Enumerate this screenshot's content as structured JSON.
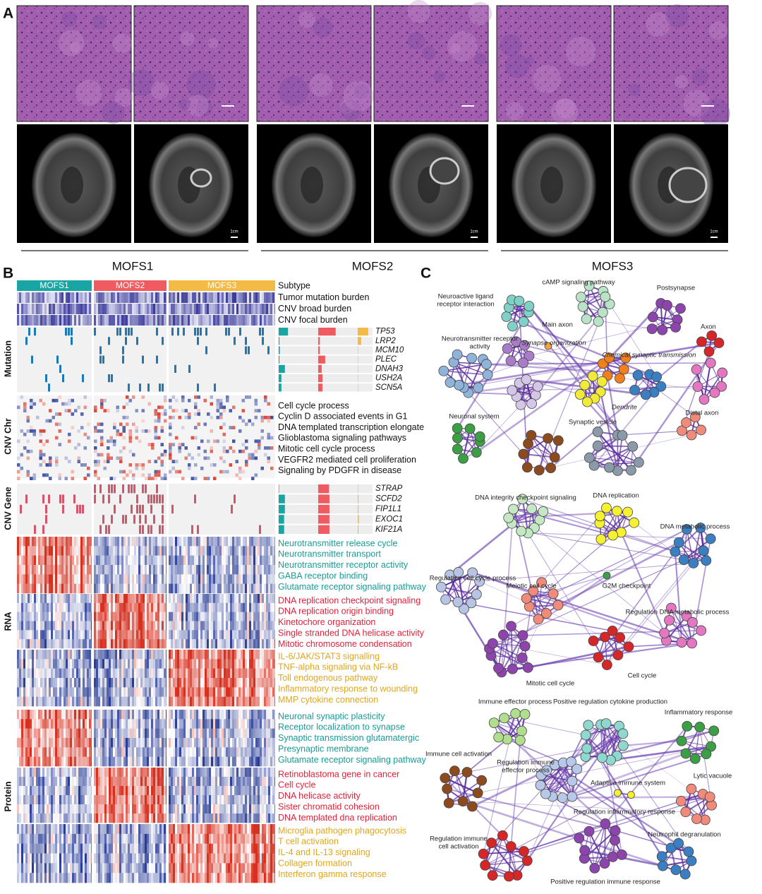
{
  "panels": {
    "a": "A",
    "b": "B",
    "c": "C"
  },
  "panel_a": {
    "groups": [
      "MOFS1",
      "MOFS2",
      "MOFS3"
    ],
    "scale_label": "1cm"
  },
  "panel_b": {
    "subtypes": [
      {
        "name": "MOFS1",
        "color": "#1aa5a5"
      },
      {
        "name": "MOFS2",
        "color": "#ef5b61"
      },
      {
        "name": "MOFS3",
        "color": "#f3bb45"
      }
    ],
    "subtype_label": "Subtype",
    "tracks": [
      "Tumor mutation burden",
      "CNV broad burden",
      "CNV focal burden"
    ],
    "sections": [
      "Mutation",
      "CNV Chr",
      "CNV Gene",
      "RNA",
      "Protein"
    ],
    "mutation": {
      "genes": [
        "TP53",
        "LRP2",
        "MCM10",
        "PLEC",
        "DNAH3",
        "USH2A",
        "SCN5A"
      ],
      "bars": [
        [
          24,
          45,
          27
        ],
        [
          2,
          4,
          9
        ],
        [
          3,
          4,
          1
        ],
        [
          2,
          18,
          1
        ],
        [
          16,
          9,
          1
        ],
        [
          7,
          11,
          1
        ],
        [
          7,
          11,
          1
        ]
      ]
    },
    "cnv_chr": {
      "pathways": [
        "Cell cycle process",
        "Cyclin D associated events in G1",
        "DNA templated transcription elongate",
        "Glioblastoma signaling pathways",
        "Mitotic cell cycle process",
        "VEGFR2 mediated cell proliferation",
        "Signaling by PDGFR in disease"
      ]
    },
    "cnv_gene": {
      "genes": [
        "STRAP",
        "SCFD2",
        "FIP1L1",
        "EXOC1",
        "KIF21A"
      ],
      "bars": [
        [
          1,
          28,
          1
        ],
        [
          16,
          29,
          2
        ],
        [
          16,
          29,
          2
        ],
        [
          14,
          29,
          3
        ],
        [
          14,
          29,
          2
        ]
      ]
    },
    "rna": [
      {
        "color": "#179b98",
        "terms": [
          "Neurotransmitter release cycle",
          "Neurotransmitter transport",
          "Neurotransmitter receptor activity",
          "GABA receptor binding",
          "Glutamate receptor signaling pathway"
        ]
      },
      {
        "color": "#e0213b",
        "terms": [
          "DNA replication checkpoint signaling",
          "DNA replication origin binding",
          "Kinetochore organization",
          "Single stranded DNA helicase activity",
          "Mitotic chromosome condensation"
        ]
      },
      {
        "color": "#e2a61b",
        "terms": [
          "IL-6/JAK/STAT3 signalling",
          "TNF-alpha signaling via NF-kB",
          "Toll endogenous pathway",
          "Inflammatory response to wounding",
          "MMP cytokine connection"
        ]
      }
    ],
    "protein": [
      {
        "color": "#179b98",
        "terms": [
          "Neuronal synaptic plasticity",
          "Receptor localization to synapse",
          "Synaptic transmission glutamatergic",
          "Presynaptic membrane",
          "Glutamate receptor signaling pathway"
        ]
      },
      {
        "color": "#e0213b",
        "terms": [
          "Retinoblastoma gene in cancer",
          "Cell cycle",
          "DNA helicase activity",
          "Sister chromatid cohesion",
          "DNA templated dna replication"
        ]
      },
      {
        "color": "#e2a61b",
        "terms": [
          "Microglia pathogen phagocytosis",
          "T cell activation",
          "IL-4 and IL-13 signaling",
          "Collagen formation",
          "Interferon gamma response"
        ]
      }
    ]
  },
  "panel_c": {
    "networks": [
      {
        "labels": [
          [
            "Neuroactive ligand",
            "receptor interaction"
          ],
          "cAMP signaling pathway",
          "Postsynapse",
          "Axon",
          "Main axon",
          [
            "Neurotransmitter receptor",
            "activity"
          ],
          "Synapse organization",
          "Chemical synaptic transmission",
          "Dendrite",
          "Neuronal system",
          "Synaptic vesicle",
          "Distal axon"
        ]
      },
      {
        "labels": [
          "DNA integrity checkpoint signaling",
          "DNA replication",
          "DNA metabolic process",
          "Regulation cell cycle process",
          "Meiotic cell cycle",
          "G2M checkpoint",
          "Regulation DNA metabolic process",
          "Cell cycle",
          "Mitotic cell cycle"
        ]
      },
      {
        "labels": [
          "Immune effector process",
          "Positive regulation cytokine production",
          "Inflammatory response",
          "Immune cell activation",
          [
            "Regulation immune",
            "effector process"
          ],
          "Adaptive immune system",
          "Lytic vacuole",
          "Regulation inflammatory response",
          [
            "Regulation immune",
            "cell activation"
          ],
          "Neutrophil degranulation",
          "Positive regulation immune response"
        ]
      }
    ]
  }
}
